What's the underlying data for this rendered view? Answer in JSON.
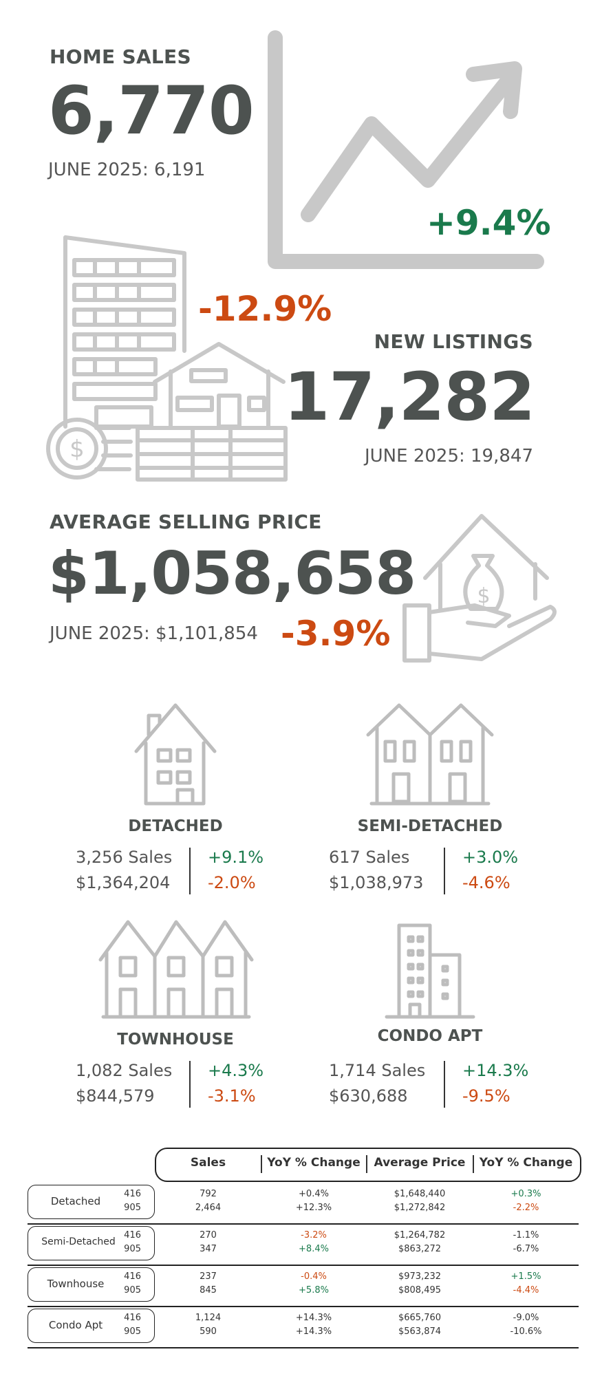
{
  "home_sales": {
    "label": "HOME SALES",
    "value": "6,770",
    "previous": "JUNE 2025: 6,191",
    "change": "+9.4%"
  },
  "new_listings": {
    "label": "NEW LISTINGS",
    "value": "17,282",
    "previous": "JUNE 2025: 19,847",
    "change": "-12.9%"
  },
  "avg_price": {
    "label": "AVERAGE SELLING PRICE",
    "value": "$1,058,658",
    "previous": "JUNE 2025: $1,101,854",
    "change": "-3.9%"
  },
  "types": [
    {
      "name": "DETACHED",
      "sales": "3,256 Sales",
      "price": "$1,364,204",
      "sales_change": "+9.1%",
      "price_change": "-2.0%"
    },
    {
      "name": "SEMI-DETACHED",
      "sales": "617 Sales",
      "price": "$1,038,973",
      "sales_change": "+3.0%",
      "price_change": "-4.6%"
    },
    {
      "name": "TOWNHOUSE",
      "sales": "1,082 Sales",
      "price": "$844,579",
      "sales_change": "+4.3%",
      "price_change": "-3.1%"
    },
    {
      "name": "CONDO APT",
      "sales": "1,714 Sales",
      "price": "$630,688",
      "sales_change": "+14.3%",
      "price_change": "-9.5%"
    }
  ],
  "table": {
    "headers": [
      "Sales",
      "YoY % Change",
      "Average Price",
      "YoY % Change"
    ],
    "rows": [
      {
        "type": "Detached",
        "codes": [
          "416",
          "905"
        ],
        "sales": [
          "792",
          "2,464"
        ],
        "sales_yoy": [
          "+0.4%",
          "+12.3%"
        ],
        "avg_price": [
          "$1,648,440",
          "$1,272,842"
        ],
        "price_yoy": [
          "+0.3%",
          "-2.2%"
        ]
      },
      {
        "type": "Semi-Detached",
        "codes": [
          "416",
          "905"
        ],
        "sales": [
          "270",
          "347"
        ],
        "sales_yoy": [
          "-3.2%",
          "+8.4%"
        ],
        "avg_price": [
          "$1,264,782",
          "$863,272"
        ],
        "price_yoy": [
          "-1.1%",
          "-6.7%"
        ]
      },
      {
        "type": "Townhouse",
        "codes": [
          "416",
          "905"
        ],
        "sales": [
          "237",
          "845"
        ],
        "sales_yoy": [
          "-0.4%",
          "+5.8%"
        ],
        "avg_price": [
          "$973,232",
          "$808,495"
        ],
        "price_yoy": [
          "+1.5%",
          "-4.4%"
        ]
      },
      {
        "type": "Condo Apt",
        "codes": [
          "416",
          "905"
        ],
        "sales": [
          "1,124",
          "590"
        ],
        "sales_yoy": [
          "+14.3%",
          "+14.3%"
        ],
        "avg_price": [
          "$665,760",
          "$563,874"
        ],
        "price_yoy": [
          "-9.0%",
          "-10.6%"
        ]
      }
    ]
  },
  "colors": {
    "positive": "#1a7a4c",
    "negative": "#cc4a12",
    "text": "#4d5250",
    "icon": "#c8c8c8"
  },
  "icons": [
    "trend-chart-icon",
    "building-house-coins-icon",
    "hand-house-money-icon",
    "detached-house-icon",
    "semi-detached-house-icon",
    "townhouse-icon",
    "condo-building-icon"
  ]
}
